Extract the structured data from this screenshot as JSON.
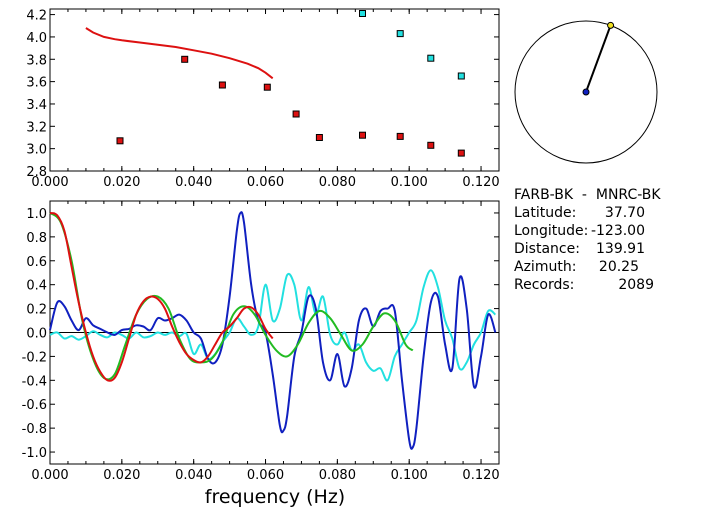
{
  "info": {
    "station_pair": "FARB-BK  -  MNRC-BK",
    "latitude_label": "Latitude:",
    "latitude_value": "37.70",
    "longitude_label": "Longitude:",
    "longitude_value": "-123.00",
    "distance_label": "Distance:",
    "distance_value": "139.91",
    "azimuth_label": "Azimuth:",
    "azimuth_value": "20.25",
    "records_label": "Records:",
    "records_value": "2089"
  },
  "colors": {
    "red": "#dd1111",
    "cyan": "#22e0e0",
    "blue": "#1020c0",
    "green": "#22bb22",
    "azimuth_tip": "#f0e020",
    "axis": "#000000"
  },
  "chart_data": [
    {
      "type": "scatter",
      "xlim": [
        0,
        0.125
      ],
      "ylim": [
        2.8,
        4.25
      ],
      "xticks": [
        "0.000",
        "0.020",
        "0.040",
        "0.060",
        "0.080",
        "0.100",
        "0.120"
      ],
      "yticks": [
        "2.8",
        "3.0",
        "3.2",
        "3.4",
        "3.6",
        "3.8",
        "4.0",
        "4.2"
      ],
      "series": [
        {
          "kind": "line",
          "color": "red",
          "x": [
            0.01,
            0.012,
            0.015,
            0.018,
            0.02,
            0.025,
            0.03,
            0.035,
            0.04,
            0.045,
            0.05,
            0.055,
            0.058,
            0.06,
            0.062
          ],
          "y": [
            4.08,
            4.04,
            4.0,
            3.98,
            3.97,
            3.95,
            3.93,
            3.91,
            3.88,
            3.85,
            3.81,
            3.76,
            3.72,
            3.68,
            3.63
          ]
        },
        {
          "kind": "points",
          "color": "red",
          "x": [
            0.0195,
            0.0375,
            0.048,
            0.0605,
            0.0685,
            0.075,
            0.087,
            0.0975,
            0.106,
            0.1145
          ],
          "y": [
            3.07,
            3.8,
            3.57,
            3.55,
            3.31,
            3.1,
            3.12,
            3.11,
            3.03,
            2.96
          ]
        },
        {
          "kind": "points",
          "color": "cyan",
          "x": [
            0.087,
            0.0975,
            0.106,
            0.1145
          ],
          "y": [
            4.21,
            4.03,
            3.81,
            3.65
          ]
        }
      ]
    },
    {
      "type": "line",
      "xlabel": "frequency (Hz)",
      "xlim": [
        0,
        0.125
      ],
      "ylim": [
        -1.1,
        1.1
      ],
      "xticks": [
        "0.000",
        "0.020",
        "0.040",
        "0.060",
        "0.080",
        "0.100",
        "0.120"
      ],
      "yticks": [
        "1.0",
        "0.8",
        "0.6",
        "0.4",
        "0.2",
        "0.0",
        "-0.2",
        "-0.4",
        "-0.6",
        "-0.8",
        "-1.0"
      ],
      "series": [
        {
          "color": "cyan",
          "x": [
            0.0,
            0.002,
            0.004,
            0.006,
            0.008,
            0.01,
            0.012,
            0.014,
            0.016,
            0.018,
            0.02,
            0.022,
            0.024,
            0.026,
            0.028,
            0.03,
            0.032,
            0.034,
            0.036,
            0.038,
            0.04,
            0.042,
            0.044,
            0.046,
            0.048,
            0.05,
            0.052,
            0.054,
            0.056,
            0.058,
            0.06,
            0.062,
            0.064,
            0.066,
            0.068,
            0.07,
            0.072,
            0.074,
            0.076,
            0.078,
            0.08,
            0.082,
            0.084,
            0.086,
            0.088,
            0.09,
            0.092,
            0.094,
            0.096,
            0.098,
            0.1,
            0.102,
            0.104,
            0.106,
            0.108,
            0.11,
            0.112,
            0.114,
            0.116,
            0.118,
            0.12,
            0.122,
            0.124
          ],
          "y": [
            -0.02,
            0.0,
            -0.05,
            -0.03,
            -0.06,
            -0.03,
            0.01,
            -0.02,
            -0.04,
            0.0,
            -0.02,
            -0.05,
            0.0,
            -0.04,
            -0.03,
            0.0,
            -0.02,
            0.0,
            -0.03,
            -0.01,
            -0.18,
            -0.1,
            -0.22,
            -0.18,
            -0.08,
            0.0,
            0.12,
            0.05,
            -0.02,
            0.05,
            0.4,
            0.1,
            0.2,
            0.48,
            0.4,
            0.1,
            0.38,
            0.15,
            0.3,
            -0.02,
            -0.1,
            0.0,
            -0.15,
            -0.1,
            -0.25,
            -0.32,
            -0.3,
            -0.4,
            -0.2,
            -0.1,
            0.0,
            0.1,
            0.38,
            0.52,
            0.38,
            0.1,
            -0.05,
            -0.3,
            -0.25,
            -0.1,
            0.0,
            0.18,
            0.15
          ]
        },
        {
          "color": "blue",
          "x": [
            0.0,
            0.002,
            0.004,
            0.006,
            0.008,
            0.01,
            0.012,
            0.014,
            0.016,
            0.018,
            0.02,
            0.022,
            0.024,
            0.026,
            0.028,
            0.03,
            0.032,
            0.034,
            0.036,
            0.038,
            0.04,
            0.042,
            0.044,
            0.046,
            0.048,
            0.05,
            0.052,
            0.053,
            0.054,
            0.056,
            0.058,
            0.06,
            0.062,
            0.064,
            0.065,
            0.066,
            0.068,
            0.07,
            0.072,
            0.074,
            0.076,
            0.078,
            0.08,
            0.082,
            0.084,
            0.086,
            0.088,
            0.09,
            0.092,
            0.094,
            0.096,
            0.098,
            0.1,
            0.101,
            0.102,
            0.104,
            0.106,
            0.108,
            0.11,
            0.112,
            0.114,
            0.116,
            0.118,
            0.12,
            0.122,
            0.124
          ],
          "y": [
            0.02,
            0.25,
            0.22,
            0.1,
            0.02,
            0.12,
            0.06,
            0.03,
            0.0,
            -0.02,
            0.02,
            0.03,
            0.06,
            0.05,
            0.02,
            0.12,
            0.1,
            0.12,
            0.15,
            0.1,
            0.0,
            -0.05,
            -0.22,
            -0.25,
            -0.1,
            0.3,
            0.85,
            1.0,
            0.92,
            0.4,
            0.1,
            0.0,
            -0.35,
            -0.78,
            -0.82,
            -0.7,
            -0.2,
            0.0,
            0.3,
            0.2,
            -0.25,
            -0.4,
            -0.18,
            -0.45,
            -0.3,
            0.1,
            0.2,
            0.05,
            0.18,
            0.2,
            0.18,
            -0.4,
            -0.9,
            -0.96,
            -0.8,
            -0.2,
            0.25,
            0.3,
            -0.1,
            -0.3,
            0.45,
            0.2,
            -0.45,
            -0.2,
            0.15,
            0.0
          ]
        },
        {
          "color": "green",
          "x": [
            0.0,
            0.003,
            0.006,
            0.009,
            0.012,
            0.015,
            0.018,
            0.021,
            0.024,
            0.027,
            0.03,
            0.033,
            0.036,
            0.039,
            0.042,
            0.045,
            0.048,
            0.051,
            0.054,
            0.057,
            0.06,
            0.063,
            0.066,
            0.069,
            0.072,
            0.075,
            0.078,
            0.081,
            0.084,
            0.087,
            0.09,
            0.093,
            0.096,
            0.099,
            0.101
          ],
          "y": [
            1.0,
            0.92,
            0.6,
            0.1,
            -0.22,
            -0.38,
            -0.35,
            -0.1,
            0.15,
            0.28,
            0.3,
            0.2,
            -0.05,
            -0.22,
            -0.25,
            -0.22,
            -0.08,
            0.15,
            0.22,
            0.15,
            -0.02,
            -0.15,
            -0.2,
            -0.1,
            0.08,
            0.18,
            0.12,
            -0.02,
            -0.15,
            -0.1,
            0.05,
            0.16,
            0.1,
            -0.1,
            -0.15
          ]
        },
        {
          "color": "red",
          "x": [
            0.0,
            0.002,
            0.004,
            0.006,
            0.008,
            0.01,
            0.012,
            0.014,
            0.016,
            0.018,
            0.02,
            0.022,
            0.024,
            0.026,
            0.028,
            0.03,
            0.032,
            0.034,
            0.036,
            0.038,
            0.04,
            0.042,
            0.044,
            0.046,
            0.048,
            0.05,
            0.052,
            0.054,
            0.056,
            0.058,
            0.06,
            0.062
          ],
          "y": [
            1.0,
            0.98,
            0.85,
            0.55,
            0.25,
            0.0,
            -0.2,
            -0.33,
            -0.4,
            -0.38,
            -0.25,
            -0.05,
            0.15,
            0.26,
            0.3,
            0.28,
            0.2,
            0.05,
            -0.08,
            -0.18,
            -0.23,
            -0.25,
            -0.2,
            -0.1,
            0.0,
            0.05,
            0.12,
            0.2,
            0.21,
            0.15,
            0.03,
            -0.05
          ]
        }
      ]
    }
  ],
  "azimuth_circle": {
    "azimuth_deg": 20.25
  }
}
